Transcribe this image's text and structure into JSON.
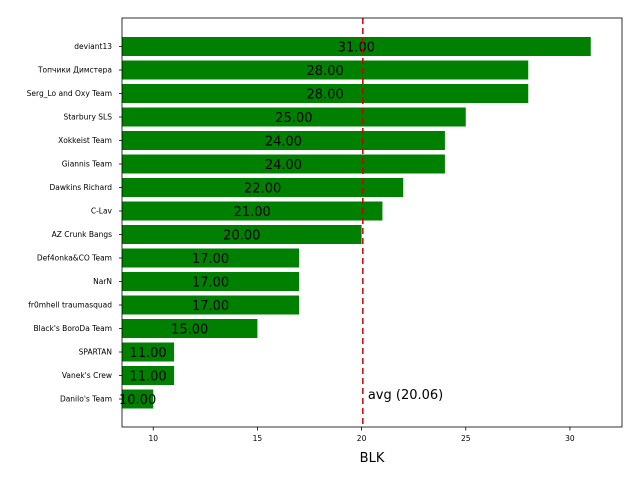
{
  "chart_data": {
    "type": "bar",
    "orientation": "horizontal",
    "title": "",
    "xlabel": "BLK",
    "ylabel": "",
    "xlim": [
      8.5,
      32.5
    ],
    "x_ticks": [
      10,
      15,
      20,
      25,
      30
    ],
    "grid": false,
    "categories": [
      "deviant13",
      "Топчики Димстера",
      "Serg_Lo and Oxy Team",
      "Starbury SLS",
      "Xokkeist Team",
      "Giannis Team",
      "Dawkins Richard",
      "C-Lav",
      "AZ Crunk Bangs",
      "Def4onka&CO Team",
      "NarN",
      "fr0mhell traumasquad",
      "Black's BoroDa Team",
      "SPARTAN",
      "Vanek's Crew",
      "Danilo's Team"
    ],
    "values": [
      31,
      28,
      28,
      25,
      24,
      24,
      22,
      21,
      20,
      17,
      17,
      17,
      15,
      11,
      11,
      10
    ],
    "value_labels": [
      "31.00",
      "28.00",
      "28.00",
      "25.00",
      "24.00",
      "24.00",
      "22.00",
      "21.00",
      "20.00",
      "17.00",
      "17.00",
      "17.00",
      "15.00",
      "11.00",
      "11.00",
      "10.00"
    ],
    "bar_color": "#008000",
    "average": {
      "value": 20.06,
      "label": "avg (20.06)",
      "color": "#cc0000",
      "style": "dashed"
    }
  }
}
